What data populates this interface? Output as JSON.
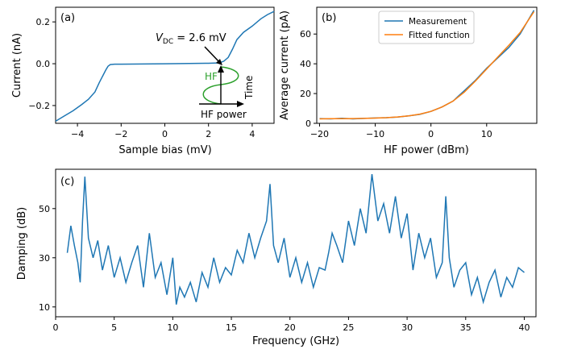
{
  "chart_data": [
    {
      "panel_label": "(a)",
      "type": "line",
      "xlabel": "Sample bias (mV)",
      "ylabel": "Current (nA)",
      "xlim": [
        -5,
        5
      ],
      "ylim": [
        -0.285,
        0.27
      ],
      "xticks": [
        -4,
        -2,
        0,
        2,
        4
      ],
      "xtick_labels": [
        "−4",
        "−2",
        "0",
        "2",
        "4"
      ],
      "yticks": [
        -0.2,
        0.0,
        0.2
      ],
      "ytick_labels": [
        "−0.2",
        "0.0",
        "0.2"
      ],
      "series": [
        {
          "color": "#1f77b4",
          "x": [
            -5.0,
            -4.6,
            -4.2,
            -3.8,
            -3.5,
            -3.2,
            -3.0,
            -2.9,
            -2.8,
            -2.7,
            -2.6,
            -2.5,
            -2.3,
            -2.0,
            0.0,
            2.0,
            2.5,
            2.7,
            2.9,
            3.0,
            3.1,
            3.3,
            3.6,
            4.0,
            4.4,
            4.7,
            5.0
          ],
          "y": [
            -0.275,
            -0.25,
            -0.225,
            -0.195,
            -0.17,
            -0.135,
            -0.09,
            -0.07,
            -0.05,
            -0.03,
            -0.012,
            -0.004,
            -0.002,
            -0.002,
            0.0,
            0.002,
            0.004,
            0.012,
            0.03,
            0.05,
            0.07,
            0.115,
            0.15,
            0.18,
            0.215,
            0.235,
            0.25
          ]
        }
      ],
      "annotations": [
        {
          "text": "2.6 mV",
          "subject": "V",
          "subscript": "DC",
          "points_to": [
            2.6,
            0.0
          ]
        },
        {
          "text": "HF",
          "color": "#2ca02c"
        },
        {
          "text": "Time"
        },
        {
          "text": "HF power"
        }
      ]
    },
    {
      "panel_label": "(b)",
      "type": "line",
      "xlabel": "HF power (dBm)",
      "ylabel": "Average current (pA)",
      "xlim": [
        -20.5,
        19
      ],
      "ylim": [
        0,
        78
      ],
      "xticks": [
        -20,
        -10,
        0,
        10
      ],
      "xtick_labels": [
        "−20",
        "−10",
        "0",
        "10"
      ],
      "yticks": [
        0,
        20,
        40,
        60
      ],
      "ytick_labels": [
        "0",
        "20",
        "40",
        "60"
      ],
      "legend": "top-center",
      "series": [
        {
          "name": "Measurement",
          "color": "#1f77b4",
          "x": [
            -20,
            -18,
            -16,
            -14,
            -12,
            -10,
            -8,
            -6,
            -4,
            -2,
            0,
            2,
            4,
            5,
            6,
            8,
            10,
            12,
            14,
            16,
            18.5
          ],
          "y": [
            3.2,
            3.0,
            3.4,
            3.0,
            3.3,
            3.6,
            3.8,
            4.2,
            5.0,
            6.0,
            8.0,
            11.0,
            15.0,
            18.5,
            22.0,
            29.0,
            37.0,
            44.0,
            51.0,
            60.0,
            76.0
          ]
        },
        {
          "name": "Fitted function",
          "color": "#ff7f0e",
          "x": [
            -20,
            -18,
            -16,
            -14,
            -12,
            -10,
            -8,
            -6,
            -4,
            -2,
            0,
            2,
            4,
            6,
            8,
            10,
            12,
            14,
            16,
            18.5
          ],
          "y": [
            3.0,
            3.1,
            3.1,
            3.2,
            3.3,
            3.5,
            3.8,
            4.3,
            5.0,
            6.2,
            8.0,
            11.0,
            15.0,
            21.0,
            28.5,
            36.5,
            44.5,
            52.5,
            61.0,
            75.0
          ]
        }
      ]
    },
    {
      "panel_label": "(c)",
      "type": "line",
      "xlabel": "Frequency (GHz)",
      "ylabel": "Damping (dB)",
      "xlim": [
        0,
        41
      ],
      "ylim": [
        6,
        66
      ],
      "xticks": [
        0,
        5,
        10,
        15,
        20,
        25,
        30,
        35,
        40
      ],
      "xtick_labels": [
        "0",
        "5",
        "10",
        "15",
        "20",
        "25",
        "30",
        "35",
        "40"
      ],
      "yticks": [
        10,
        30,
        50
      ],
      "ytick_labels": [
        "10",
        "30",
        "50"
      ],
      "series": [
        {
          "color": "#1f77b4",
          "x": [
            1.0,
            1.3,
            1.6,
            1.9,
            2.1,
            2.3,
            2.5,
            2.8,
            3.2,
            3.6,
            4.0,
            4.5,
            5.0,
            5.5,
            6.0,
            6.5,
            7.0,
            7.5,
            8.0,
            8.5,
            9.0,
            9.5,
            10.0,
            10.3,
            10.6,
            11.0,
            11.5,
            12.0,
            12.5,
            13.0,
            13.5,
            14.0,
            14.5,
            15.0,
            15.5,
            16.0,
            16.5,
            17.0,
            17.5,
            18.0,
            18.3,
            18.6,
            19.0,
            19.5,
            20.0,
            20.5,
            21.0,
            21.5,
            22.0,
            22.5,
            23.0,
            23.3,
            23.6,
            24.0,
            24.5,
            25.0,
            25.5,
            26.0,
            26.5,
            27.0,
            27.5,
            28.0,
            28.5,
            29.0,
            29.5,
            30.0,
            30.5,
            31.0,
            31.5,
            32.0,
            32.5,
            33.0,
            33.3,
            33.6,
            34.0,
            34.5,
            35.0,
            35.5,
            36.0,
            36.5,
            37.0,
            37.5,
            38.0,
            38.5,
            39.0,
            39.5,
            40.0
          ],
          "y": [
            32,
            43,
            35,
            28,
            20,
            45,
            63,
            38,
            30,
            37,
            25,
            35,
            22,
            30,
            20,
            28,
            35,
            18,
            40,
            22,
            28,
            15,
            30,
            11,
            18,
            14,
            20,
            12,
            24,
            18,
            30,
            20,
            26,
            23,
            33,
            28,
            40,
            30,
            38,
            45,
            60,
            35,
            28,
            38,
            22,
            30,
            20,
            28,
            18,
            26,
            25,
            32,
            40,
            35,
            28,
            45,
            35,
            50,
            40,
            64,
            45,
            52,
            40,
            55,
            38,
            48,
            25,
            40,
            30,
            38,
            22,
            28,
            55,
            30,
            18,
            25,
            28,
            15,
            22,
            12,
            20,
            25,
            14,
            22,
            18,
            26,
            24
          ]
        }
      ]
    }
  ]
}
